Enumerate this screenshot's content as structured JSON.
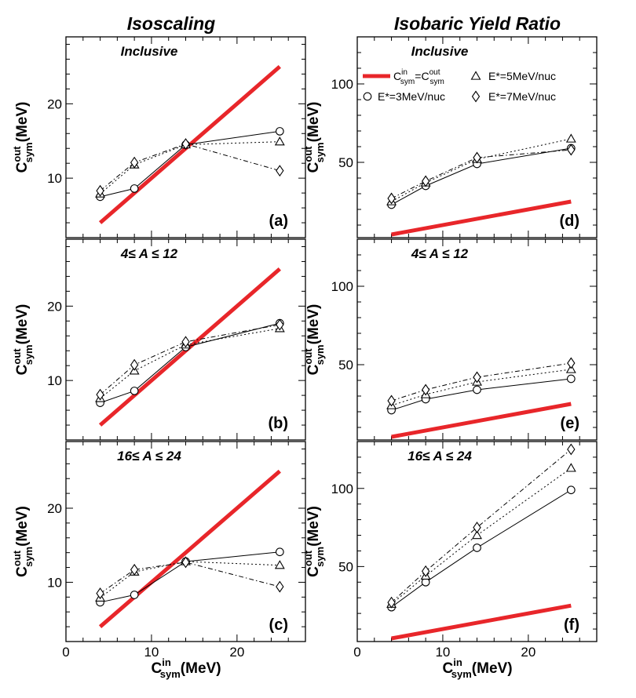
{
  "column_titles": [
    "Isoscaling",
    "Isobaric Yield Ratio"
  ],
  "x_axis_label": {
    "main": "C",
    "sup": "in",
    "sub": "sym",
    "unit": "(MeV)"
  },
  "y_axis_label": {
    "main": "C",
    "sup": "out",
    "sub": "sym",
    "unit": "(MeV)"
  },
  "legend": {
    "reference": {
      "main": "C",
      "sup": "in",
      "sub": "sym",
      "eq": "=",
      "main2": "C",
      "sup2": "out",
      "sub2": "sym"
    },
    "series_labels": [
      "E*=3MeV/nuc",
      "E*=5MeV/nuc",
      "E*=7MeV/nuc"
    ]
  },
  "colors": {
    "reference_line": "#e8262a",
    "axes": "#000000"
  },
  "chart_data": [
    {
      "id": "a",
      "type": "line",
      "column": 0,
      "row": 0,
      "title": "Inclusive",
      "panel_label": "(a)",
      "xlim": [
        0,
        28
      ],
      "ylim": [
        2,
        29
      ],
      "xticks": [
        0,
        10,
        20
      ],
      "yticks": [
        10,
        20
      ],
      "x": [
        4,
        8,
        14,
        25
      ],
      "series": [
        {
          "name": "E*=3MeV/nuc",
          "marker": "circle",
          "dash": "solid",
          "values": [
            7.5,
            8.6,
            14.5,
            16.3
          ]
        },
        {
          "name": "E*=5MeV/nuc",
          "marker": "triangle",
          "dash": "dotted",
          "values": [
            7.9,
            11.8,
            14.5,
            14.9
          ]
        },
        {
          "name": "E*=7MeV/nuc",
          "marker": "diamond",
          "dash": "dashdot",
          "values": [
            8.3,
            12.1,
            14.6,
            11.0
          ]
        }
      ],
      "reference": [
        [
          4,
          4
        ],
        [
          25,
          25
        ]
      ]
    },
    {
      "id": "b",
      "type": "line",
      "column": 0,
      "row": 1,
      "title": "4≤ A ≤ 12",
      "panel_label": "(b)",
      "xlim": [
        0,
        28
      ],
      "ylim": [
        2,
        29
      ],
      "xticks": [
        0,
        10,
        20
      ],
      "yticks": [
        10,
        20
      ],
      "x": [
        4,
        8,
        14,
        25
      ],
      "series": [
        {
          "name": "E*=3MeV/nuc",
          "marker": "circle",
          "dash": "solid",
          "values": [
            7.0,
            8.6,
            14.5,
            17.7
          ]
        },
        {
          "name": "E*=5MeV/nuc",
          "marker": "triangle",
          "dash": "dotted",
          "values": [
            7.6,
            11.3,
            14.8,
            17.0
          ]
        },
        {
          "name": "E*=7MeV/nuc",
          "marker": "diamond",
          "dash": "dashdot",
          "values": [
            8.1,
            12.1,
            15.2,
            17.5
          ]
        }
      ],
      "reference": [
        [
          4,
          4
        ],
        [
          25,
          25
        ]
      ]
    },
    {
      "id": "c",
      "type": "line",
      "column": 0,
      "row": 2,
      "title": "16≤ A ≤ 24",
      "panel_label": "(c)",
      "xlim": [
        0,
        28
      ],
      "ylim": [
        2,
        29
      ],
      "xticks": [
        0,
        10,
        20
      ],
      "yticks": [
        10,
        20
      ],
      "x": [
        4,
        8,
        14,
        25
      ],
      "series": [
        {
          "name": "E*=3MeV/nuc",
          "marker": "circle",
          "dash": "solid",
          "values": [
            7.3,
            8.3,
            12.8,
            14.1
          ]
        },
        {
          "name": "E*=5MeV/nuc",
          "marker": "triangle",
          "dash": "dotted",
          "values": [
            7.9,
            11.4,
            12.8,
            12.3
          ]
        },
        {
          "name": "E*=7MeV/nuc",
          "marker": "diamond",
          "dash": "dashdot",
          "values": [
            8.5,
            11.7,
            12.7,
            9.4
          ]
        }
      ],
      "reference": [
        [
          4,
          4
        ],
        [
          25,
          25
        ]
      ]
    },
    {
      "id": "d",
      "type": "line",
      "column": 1,
      "row": 0,
      "title": "Inclusive",
      "panel_label": "(d)",
      "xlim": [
        0,
        28
      ],
      "ylim": [
        2,
        130
      ],
      "xticks": [
        0,
        10,
        20
      ],
      "yticks": [
        50,
        100
      ],
      "x": [
        4,
        8,
        14,
        25
      ],
      "series": [
        {
          "name": "E*=3MeV/nuc",
          "marker": "circle",
          "dash": "solid",
          "values": [
            23,
            35,
            49,
            59
          ]
        },
        {
          "name": "E*=5MeV/nuc",
          "marker": "triangle",
          "dash": "dotted",
          "values": [
            25,
            37,
            52,
            65
          ]
        },
        {
          "name": "E*=7MeV/nuc",
          "marker": "diamond",
          "dash": "dashdot",
          "values": [
            27,
            38,
            53,
            58
          ]
        }
      ],
      "reference": [
        [
          4,
          4
        ],
        [
          25,
          25
        ]
      ]
    },
    {
      "id": "e",
      "type": "line",
      "column": 1,
      "row": 1,
      "title": "4≤ A ≤ 12",
      "panel_label": "(e)",
      "xlim": [
        0,
        28
      ],
      "ylim": [
        2,
        130
      ],
      "xticks": [
        0,
        10,
        20
      ],
      "yticks": [
        50,
        100
      ],
      "x": [
        4,
        8,
        14,
        25
      ],
      "series": [
        {
          "name": "E*=3MeV/nuc",
          "marker": "circle",
          "dash": "solid",
          "values": [
            21,
            28,
            34,
            41
          ]
        },
        {
          "name": "E*=5MeV/nuc",
          "marker": "triangle",
          "dash": "dotted",
          "values": [
            24,
            31,
            39,
            47
          ]
        },
        {
          "name": "E*=7MeV/nuc",
          "marker": "diamond",
          "dash": "dashdot",
          "values": [
            27,
            34,
            42,
            51
          ]
        }
      ],
      "reference": [
        [
          4,
          4
        ],
        [
          25,
          25
        ]
      ]
    },
    {
      "id": "f",
      "type": "line",
      "column": 1,
      "row": 2,
      "title": "16≤ A ≤ 24",
      "panel_label": "(f)",
      "xlim": [
        0,
        28
      ],
      "ylim": [
        2,
        130
      ],
      "xticks": [
        0,
        10,
        20
      ],
      "yticks": [
        50,
        100
      ],
      "x": [
        4,
        8,
        14,
        25
      ],
      "series": [
        {
          "name": "E*=3MeV/nuc",
          "marker": "circle",
          "dash": "solid",
          "values": [
            24,
            40,
            62,
            99
          ]
        },
        {
          "name": "E*=5MeV/nuc",
          "marker": "triangle",
          "dash": "dotted",
          "values": [
            26,
            44,
            70,
            113
          ]
        },
        {
          "name": "E*=7MeV/nuc",
          "marker": "diamond",
          "dash": "dashdot",
          "values": [
            27,
            47,
            75,
            125
          ]
        }
      ],
      "reference": [
        [
          4,
          4
        ],
        [
          25,
          25
        ]
      ]
    }
  ]
}
